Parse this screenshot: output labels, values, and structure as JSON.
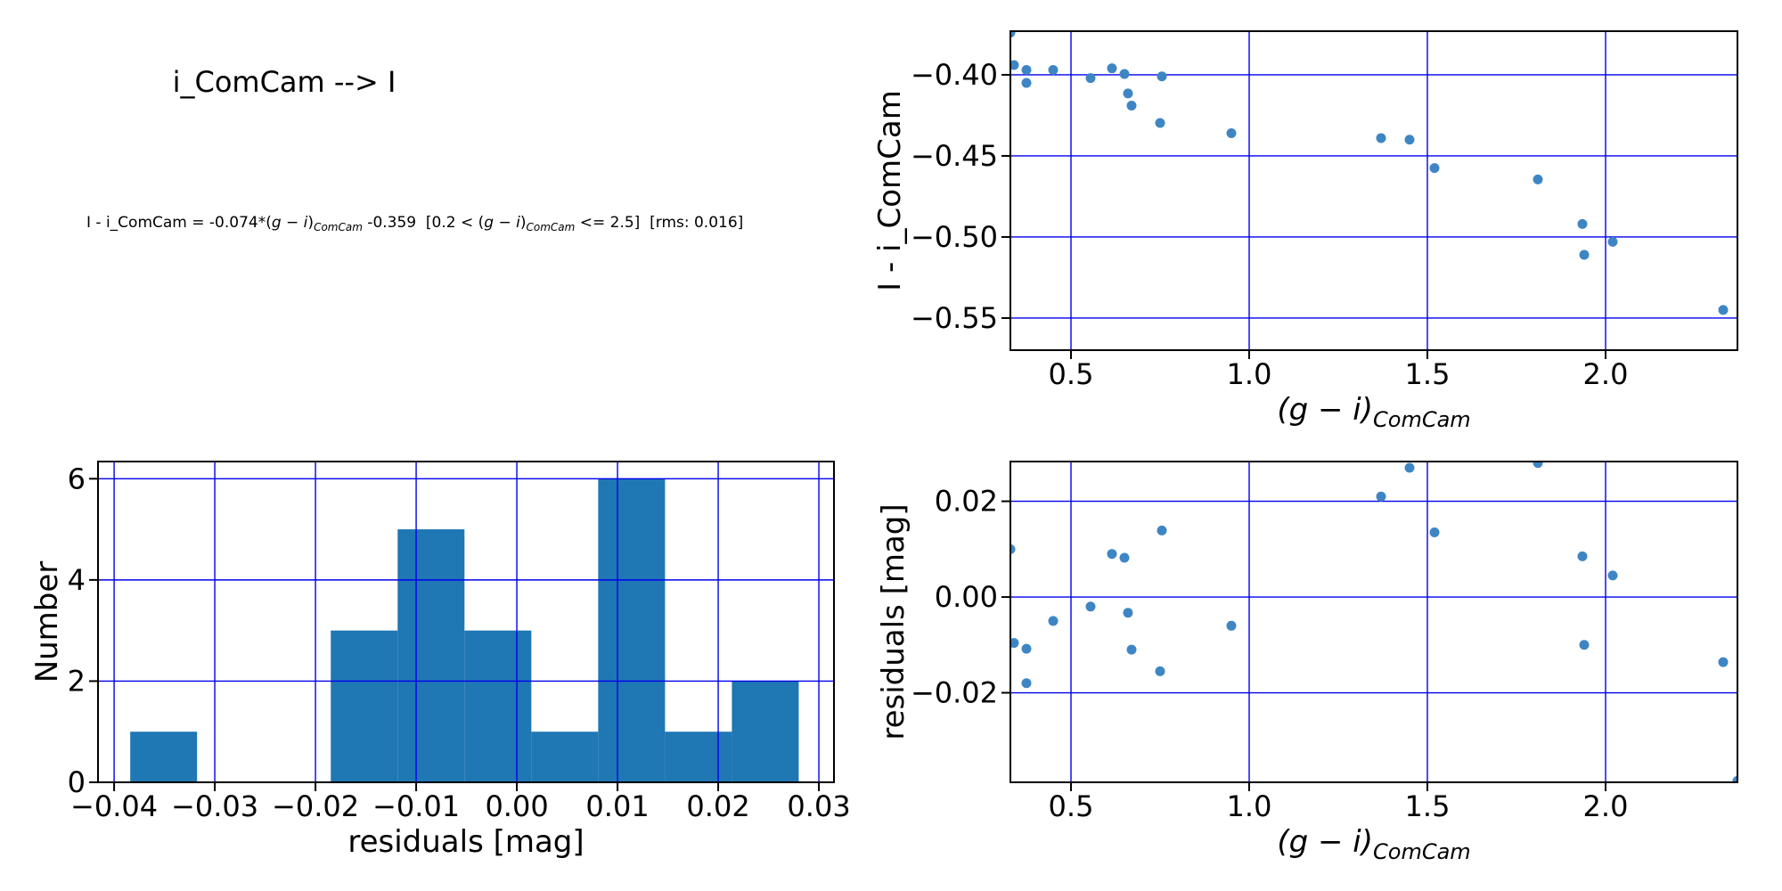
{
  "figure": {
    "title": "i_ComCam --> I"
  },
  "equation": {
    "segments": [
      {
        "text": "I - i_ComCam = -0.074*("
      },
      {
        "text": "g − i",
        "italic": true
      },
      {
        "text": ")"
      },
      {
        "text": "ComCam",
        "italic": true,
        "sub": true
      },
      {
        "text": " -0.359  [0.2 < ("
      },
      {
        "text": "g − i",
        "italic": true
      },
      {
        "text": ")"
      },
      {
        "text": "ComCam",
        "italic": true,
        "sub": true
      },
      {
        "text": " <= 2.5]  [rms: 0.016]"
      }
    ]
  },
  "colors": {
    "grid": "#0000ee",
    "marker": "#3e86c3",
    "bar": "#1f77b4",
    "spine": "#000000",
    "text": "#000000",
    "background": "#ffffff"
  },
  "chart_data": [
    {
      "id": "color-term-scatter",
      "type": "scatter",
      "ylabel": "I - i_ComCam",
      "xlabel_math": {
        "main": "(g − i)",
        "sub": "ComCam"
      },
      "xlim": [
        0.33,
        2.37
      ],
      "ylim": [
        -0.5698,
        -0.3731
      ],
      "grid": true,
      "xticks": [
        {
          "v": 0.5,
          "t": "0.5"
        },
        {
          "v": 1.0,
          "t": "1.0"
        },
        {
          "v": 1.5,
          "t": "1.5"
        },
        {
          "v": 2.0,
          "t": "2.0"
        }
      ],
      "yticks": [
        {
          "v": -0.4,
          "t": "−0.40"
        },
        {
          "v": -0.45,
          "t": "−0.45"
        },
        {
          "v": -0.5,
          "t": "−0.50"
        },
        {
          "v": -0.55,
          "t": "−0.55"
        }
      ],
      "x": [
        0.33,
        0.34,
        0.375,
        0.375,
        0.45,
        0.555,
        0.615,
        0.65,
        0.66,
        0.67,
        0.755,
        0.75,
        0.95,
        1.37,
        1.45,
        1.52,
        1.81,
        1.935,
        1.94,
        2.02,
        2.33,
        2.37
      ],
      "y": [
        -0.374,
        -0.394,
        -0.397,
        -0.405,
        -0.397,
        -0.402,
        -0.396,
        -0.3995,
        -0.4115,
        -0.419,
        -0.401,
        -0.4297,
        -0.436,
        -0.439,
        -0.44,
        -0.4575,
        -0.4645,
        -0.492,
        -0.511,
        -0.503,
        -0.545,
        -0.572
      ]
    },
    {
      "id": "residuals-histogram",
      "type": "histogram",
      "xlabel": "residuals [mag]",
      "ylabel": "Number",
      "xlim": [
        -0.0416,
        0.0315
      ],
      "ylim": [
        0,
        6.34
      ],
      "grid": true,
      "bin_edges": [
        -0.0384,
        -0.03176,
        -0.02512,
        -0.01848,
        -0.01184,
        -0.0052,
        0.00144,
        0.00808,
        0.01472,
        0.02136,
        0.028
      ],
      "counts": [
        1,
        0,
        0,
        3,
        5,
        3,
        1,
        6,
        1,
        2
      ],
      "xticks": [
        {
          "v": -0.04,
          "t": "−0.04"
        },
        {
          "v": -0.03,
          "t": "−0.03"
        },
        {
          "v": -0.02,
          "t": "−0.02"
        },
        {
          "v": -0.01,
          "t": "−0.01"
        },
        {
          "v": 0.0,
          "t": "0.00"
        },
        {
          "v": 0.01,
          "t": "0.01"
        },
        {
          "v": 0.02,
          "t": "0.02"
        },
        {
          "v": 0.03,
          "t": "0.03"
        }
      ],
      "yticks": [
        {
          "v": 0,
          "t": "0"
        },
        {
          "v": 2,
          "t": "2"
        },
        {
          "v": 4,
          "t": "4"
        },
        {
          "v": 6,
          "t": "6"
        }
      ]
    },
    {
      "id": "residuals-scatter",
      "type": "scatter",
      "ylabel": "residuals [mag]",
      "xlabel_math": {
        "main": "(g − i)",
        "sub": "ComCam"
      },
      "xlim": [
        0.33,
        2.37
      ],
      "ylim": [
        -0.0387,
        0.0283
      ],
      "grid": true,
      "xticks": [
        {
          "v": 0.5,
          "t": "0.5"
        },
        {
          "v": 1.0,
          "t": "1.0"
        },
        {
          "v": 1.5,
          "t": "1.5"
        },
        {
          "v": 2.0,
          "t": "2.0"
        }
      ],
      "yticks": [
        {
          "v": 0.02,
          "t": "0.02"
        },
        {
          "v": 0.0,
          "t": "0.00"
        },
        {
          "v": -0.02,
          "t": "−0.02"
        }
      ],
      "x": [
        0.33,
        0.34,
        0.375,
        0.375,
        0.45,
        0.555,
        0.615,
        0.65,
        0.66,
        0.67,
        0.755,
        0.75,
        0.95,
        1.37,
        1.45,
        1.52,
        1.81,
        1.935,
        1.94,
        2.02,
        2.33,
        2.37
      ],
      "y": [
        0.01,
        -0.0096,
        -0.0108,
        -0.018,
        -0.005,
        -0.002,
        0.009,
        0.0082,
        -0.0033,
        -0.011,
        0.0139,
        -0.0155,
        -0.006,
        0.021,
        0.027,
        0.0135,
        0.028,
        0.0085,
        -0.01,
        0.0045,
        -0.0136,
        -0.0384
      ]
    }
  ]
}
